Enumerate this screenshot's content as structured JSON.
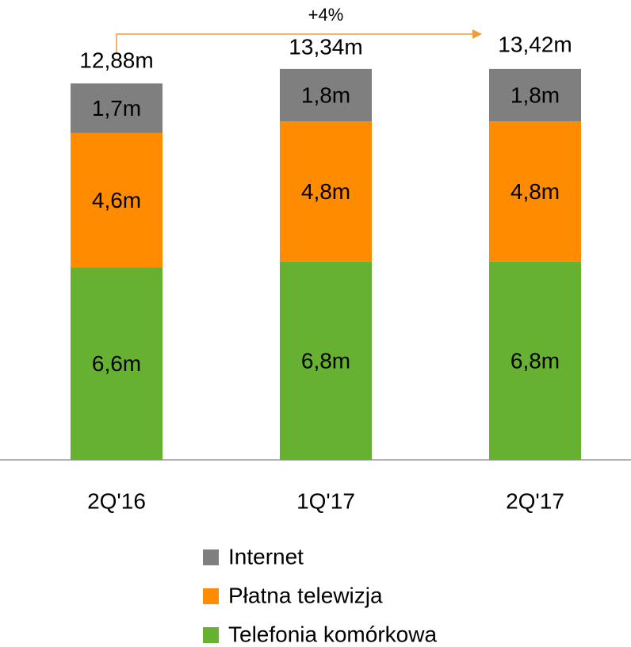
{
  "chart_data": {
    "type": "stacked_bar",
    "categories": [
      "2Q'16",
      "1Q'17",
      "2Q'17"
    ],
    "series": [
      {
        "name": "Internet",
        "color": "#7f7f7f",
        "values": [
          1.7,
          1.8,
          1.8
        ],
        "value_labels": [
          "1,7m",
          "1,8m",
          "1,8m"
        ]
      },
      {
        "name": "Płatna telewizja",
        "color": "#ff8c00",
        "values": [
          4.6,
          4.8,
          4.8
        ],
        "value_labels": [
          "4,6m",
          "4,8m",
          "4,8m"
        ]
      },
      {
        "name": "Telefonia komórkowa",
        "color": "#66b132",
        "values": [
          6.6,
          6.8,
          6.8
        ],
        "value_labels": [
          "6,6m",
          "6,8m",
          "6,8m"
        ]
      }
    ],
    "totals": [
      12.88,
      13.34,
      13.42
    ],
    "total_labels": [
      "12,88m",
      "13,34m",
      "13,42m"
    ],
    "annotation": "+4%"
  }
}
